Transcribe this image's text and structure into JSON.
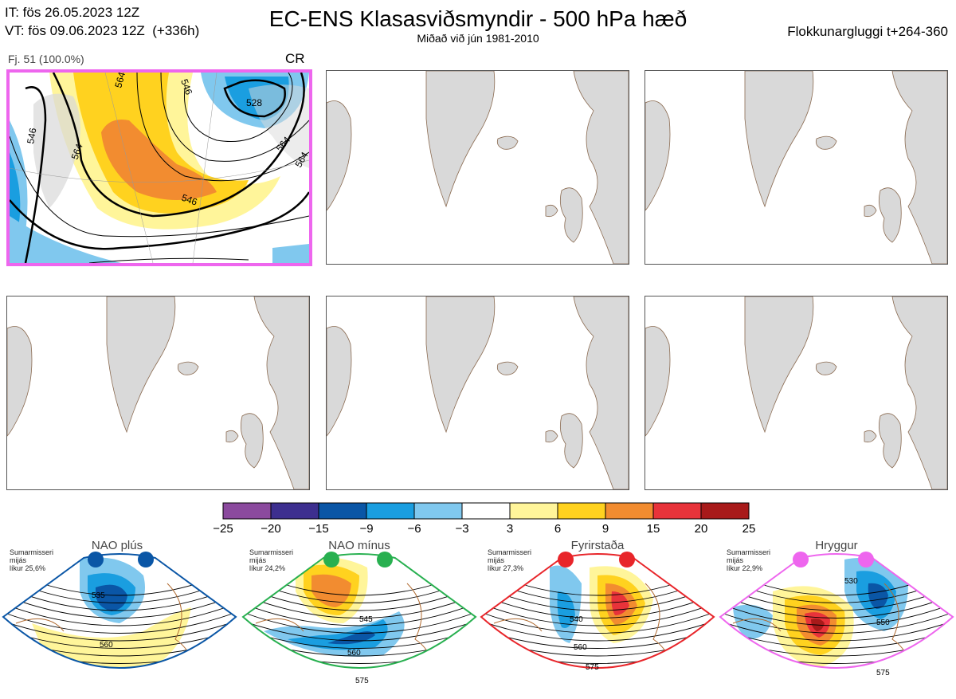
{
  "header": {
    "init_line": "IT: fös 26.05.2023 12Z",
    "valid_line": "VT: fös 09.06.2023 12Z  (+336h)",
    "title": "EC-ENS Klasasviðsmyndir - 500 hPa hæð",
    "subtitle": "Miðað við jún 1981-2010",
    "window": "Flokkunargluggi t+264-360"
  },
  "main_panel": {
    "label": "Fj. 51 (100.0%)",
    "code": "CR",
    "contour_labels": [
      "546",
      "564",
      "564",
      "546",
      "528",
      "546",
      "564",
      "564"
    ]
  },
  "colorbar": {
    "ticks": [
      "−25",
      "−20",
      "−15",
      "−9",
      "−6",
      "−3",
      "3",
      "6",
      "9",
      "15",
      "20",
      "25"
    ],
    "colors": [
      "#8b4a9e",
      "#3d2f8f",
      "#0a56a6",
      "#1a9ee0",
      "#80c8ee",
      "#ffffff",
      "#fff59a",
      "#ffd21f",
      "#f28c30",
      "#e8333a",
      "#a81a1a"
    ]
  },
  "regimes": [
    {
      "name": "NAO plús",
      "season": "Sumarmisseri",
      "freq": "mijás",
      "prob": "líkur 25,6%",
      "color": "#0a56a6",
      "labels": [
        "535",
        "560"
      ]
    },
    {
      "name": "NAO mínus",
      "season": "Sumarmisseri",
      "freq": "mijás",
      "prob": "líkur 24,2%",
      "color": "#28b050",
      "labels": [
        "545",
        "560",
        "575"
      ]
    },
    {
      "name": "Fyrirstaða",
      "season": "Sumarmisseri",
      "freq": "mijás",
      "prob": "líkur 27,3%",
      "color": "#e8252a",
      "labels": [
        "540",
        "560",
        "575"
      ]
    },
    {
      "name": "Hryggur",
      "season": "Sumarmisseri",
      "freq": "mijás",
      "prob": "líkur 22,9%",
      "color": "#ee66ee",
      "labels": [
        "530",
        "550",
        "575"
      ]
    }
  ]
}
